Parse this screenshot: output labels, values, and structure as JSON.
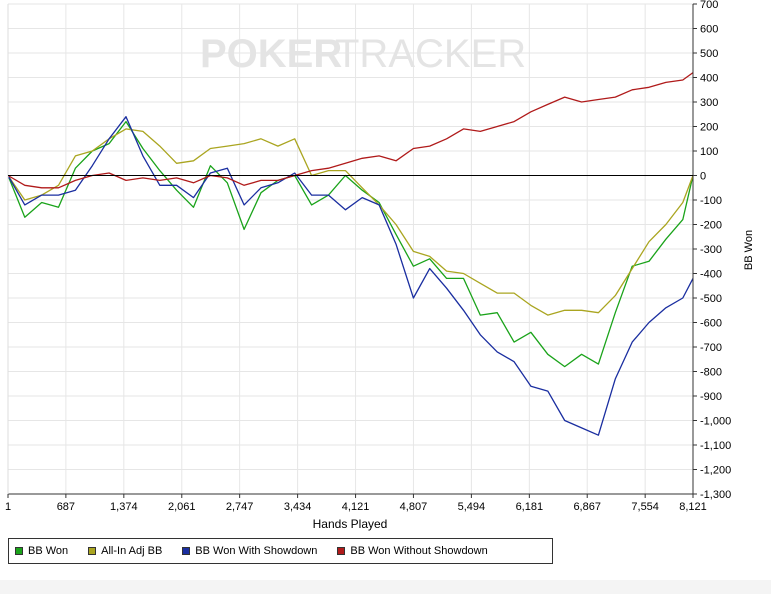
{
  "watermark": {
    "left": "POKER",
    "right": "TRACKER"
  },
  "chart_data": {
    "type": "line",
    "xlabel": "Hands Played",
    "ylabel": "BB Won",
    "xlim": [
      1,
      8121
    ],
    "ylim": [
      -1300,
      700
    ],
    "x_ticks": [
      1,
      687,
      1374,
      2061,
      2747,
      3434,
      4121,
      4807,
      5494,
      6181,
      6867,
      7554,
      8121
    ],
    "x_tick_labels": [
      "1",
      "687",
      "1,374",
      "2,061",
      "2,747",
      "3,434",
      "4,121",
      "4,807",
      "5,494",
      "6,181",
      "6,867",
      "7,554",
      "8,121"
    ],
    "y_ticks": [
      700,
      600,
      500,
      400,
      300,
      200,
      100,
      0,
      -100,
      -200,
      -300,
      -400,
      -500,
      -600,
      -700,
      -800,
      -900,
      -1000,
      -1100,
      -1200,
      -1300
    ],
    "y_tick_labels": [
      "700",
      "600",
      "500",
      "400",
      "300",
      "200",
      "100",
      "0",
      "-100",
      "-200",
      "-300",
      "-400",
      "-500",
      "-600",
      "-700",
      "-800",
      "-900",
      "-1,000",
      "-1,100",
      "-1,200",
      "-1,300"
    ],
    "grid": true,
    "legend_position": "bottom-left",
    "series": [
      {
        "name": "BB Won",
        "color": "#1aa31a",
        "x": [
          1,
          200,
          400,
          600,
          800,
          1000,
          1200,
          1400,
          1600,
          1800,
          2000,
          2200,
          2400,
          2600,
          2800,
          3000,
          3200,
          3400,
          3600,
          3800,
          4000,
          4200,
          4400,
          4600,
          4807,
          5000,
          5200,
          5400,
          5600,
          5800,
          6000,
          6200,
          6400,
          6600,
          6800,
          7000,
          7200,
          7400,
          7600,
          7800,
          8000,
          8121
        ],
        "values": [
          0,
          -170,
          -110,
          -130,
          30,
          100,
          130,
          220,
          110,
          20,
          -60,
          -130,
          40,
          -30,
          -220,
          -70,
          -20,
          0,
          -120,
          -80,
          0,
          -60,
          -110,
          -240,
          -370,
          -340,
          -420,
          -420,
          -570,
          -560,
          -680,
          -640,
          -730,
          -780,
          -730,
          -770,
          -560,
          -370,
          -350,
          -260,
          -180,
          0
        ]
      },
      {
        "name": "All-In Adj BB",
        "color": "#aaa520",
        "x": [
          1,
          200,
          400,
          600,
          800,
          1000,
          1200,
          1400,
          1600,
          1800,
          2000,
          2200,
          2400,
          2600,
          2800,
          3000,
          3200,
          3400,
          3600,
          3800,
          4000,
          4200,
          4400,
          4600,
          4807,
          5000,
          5200,
          5400,
          5600,
          5800,
          6000,
          6200,
          6400,
          6600,
          6800,
          7000,
          7200,
          7400,
          7600,
          7800,
          8000,
          8121
        ],
        "values": [
          0,
          -100,
          -80,
          -40,
          80,
          100,
          150,
          190,
          180,
          120,
          50,
          60,
          110,
          120,
          130,
          150,
          120,
          150,
          0,
          20,
          20,
          -50,
          -120,
          -200,
          -310,
          -330,
          -390,
          -400,
          -440,
          -480,
          -480,
          -530,
          -570,
          -550,
          -550,
          -560,
          -490,
          -380,
          -270,
          -200,
          -110,
          0
        ]
      },
      {
        "name": "BB Won With Showdown",
        "color": "#1a2ea0",
        "x": [
          1,
          200,
          400,
          600,
          800,
          1000,
          1200,
          1400,
          1600,
          1800,
          2000,
          2200,
          2400,
          2600,
          2800,
          3000,
          3200,
          3400,
          3600,
          3800,
          4000,
          4200,
          4400,
          4600,
          4807,
          5000,
          5200,
          5400,
          5600,
          5800,
          6000,
          6200,
          6400,
          6600,
          6800,
          7000,
          7200,
          7400,
          7600,
          7800,
          8000,
          8121
        ],
        "values": [
          0,
          -120,
          -80,
          -80,
          -60,
          40,
          150,
          240,
          80,
          -40,
          -40,
          -90,
          10,
          30,
          -120,
          -50,
          -30,
          10,
          -80,
          -80,
          -140,
          -90,
          -120,
          -280,
          -500,
          -380,
          -460,
          -550,
          -650,
          -720,
          -760,
          -860,
          -880,
          -1000,
          -1030,
          -1060,
          -830,
          -680,
          -600,
          -540,
          -500,
          -420
        ]
      },
      {
        "name": "BB Won Without Showdown",
        "color": "#b01a1a",
        "x": [
          1,
          200,
          400,
          600,
          800,
          1000,
          1200,
          1400,
          1600,
          1800,
          2000,
          2200,
          2400,
          2600,
          2800,
          3000,
          3200,
          3400,
          3600,
          3800,
          4000,
          4200,
          4400,
          4600,
          4807,
          5000,
          5200,
          5400,
          5600,
          5800,
          6000,
          6200,
          6400,
          6600,
          6800,
          7000,
          7200,
          7400,
          7600,
          7800,
          8000,
          8121
        ],
        "values": [
          0,
          -40,
          -50,
          -50,
          -20,
          0,
          10,
          -20,
          -10,
          -20,
          -10,
          -30,
          0,
          -10,
          -40,
          -20,
          -20,
          0,
          20,
          30,
          50,
          70,
          80,
          60,
          110,
          120,
          150,
          190,
          180,
          200,
          220,
          260,
          290,
          320,
          300,
          310,
          320,
          350,
          360,
          380,
          390,
          420
        ]
      }
    ]
  }
}
